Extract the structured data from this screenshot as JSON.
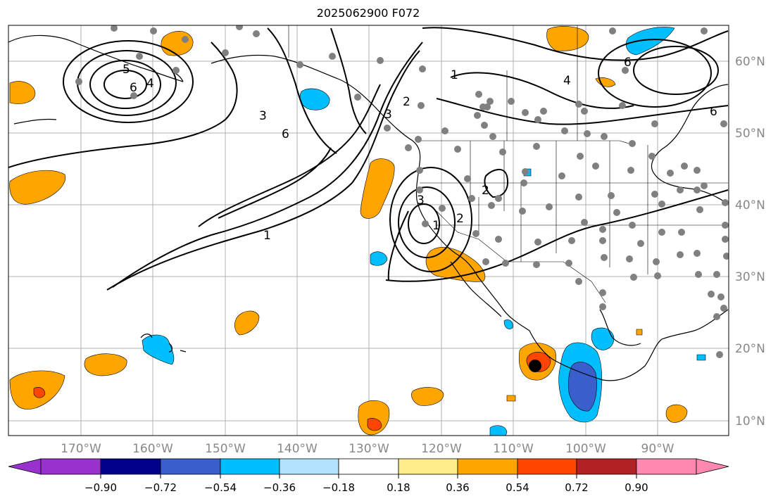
{
  "title": "2025062900 F072",
  "map": {
    "lon_labels": [
      "170°W",
      "160°W",
      "150°W",
      "140°W",
      "130°W",
      "120°W",
      "110°W",
      "100°W",
      "90°W"
    ],
    "lat_labels": [
      "60°N",
      "50°N",
      "40°N",
      "30°N",
      "20°N",
      "10°N"
    ],
    "contour_labels": [
      "5",
      "4",
      "6",
      "3",
      "6",
      "1",
      "2",
      "3",
      "2",
      "1",
      "3",
      "2",
      "1",
      "4",
      "6",
      "6"
    ],
    "storm_marker": "tropical-cyclone-center",
    "label_color": "#888888"
  },
  "colorbar": {
    "ticks": [
      "−0.90",
      "−0.72",
      "−0.54",
      "−0.36",
      "−0.18",
      "0.18",
      "0.36",
      "0.54",
      "0.72",
      "0.90"
    ],
    "colors": [
      "#9932cc",
      "#00008b",
      "#3a5fcd",
      "#00bfff",
      "#b2e2ff",
      "#ffffff",
      "#ffec8b",
      "#ffa500",
      "#ff4500",
      "#b22222",
      "#ff88b0"
    ]
  }
}
